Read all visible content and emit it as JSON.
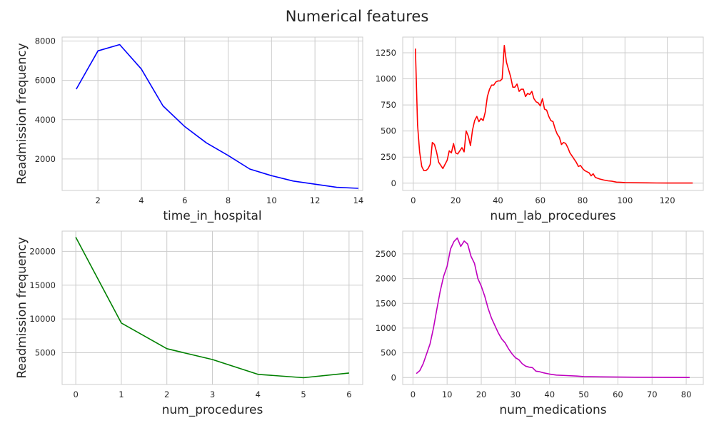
{
  "title": "Numerical features",
  "chart_data": [
    {
      "type": "line",
      "xlabel": "time_in_hospital",
      "ylabel": "Readmission frequency",
      "xlim": [
        0.35,
        14.2
      ],
      "ylim": [
        400,
        8200
      ],
      "xticks": [
        2,
        4,
        6,
        8,
        10,
        12,
        14
      ],
      "yticks": [
        2000,
        4000,
        6000,
        8000
      ],
      "color": "#0000ff",
      "grid": true,
      "x": [
        1,
        2,
        3,
        4,
        5,
        6,
        7,
        8,
        9,
        10,
        11,
        12,
        13,
        14
      ],
      "y": [
        5550,
        7500,
        7820,
        6580,
        4700,
        3650,
        2820,
        2180,
        1490,
        1150,
        880,
        720,
        560,
        510
      ]
    },
    {
      "type": "line",
      "xlabel": "num_lab_procedures",
      "ylabel": "",
      "xlim": [
        -5,
        137
      ],
      "ylim": [
        -70,
        1400
      ],
      "xticks": [
        0,
        20,
        40,
        60,
        80,
        100,
        120
      ],
      "yticks": [
        0,
        250,
        500,
        750,
        1000,
        1250
      ],
      "color": "#ff0000",
      "grid": true,
      "x": [
        1,
        2,
        3,
        4,
        5,
        6,
        7,
        8,
        9,
        10,
        11,
        12,
        13,
        14,
        15,
        16,
        17,
        18,
        19,
        20,
        21,
        22,
        23,
        24,
        25,
        26,
        27,
        28,
        29,
        30,
        31,
        32,
        33,
        34,
        35,
        36,
        37,
        38,
        39,
        40,
        41,
        42,
        43,
        44,
        45,
        46,
        47,
        48,
        49,
        50,
        51,
        52,
        53,
        54,
        55,
        56,
        57,
        58,
        59,
        60,
        61,
        62,
        63,
        64,
        65,
        66,
        67,
        68,
        69,
        70,
        71,
        72,
        73,
        74,
        75,
        76,
        77,
        78,
        79,
        80,
        81,
        82,
        83,
        84,
        85,
        86,
        88,
        90,
        92,
        94,
        96,
        98,
        100,
        102,
        105,
        110,
        115,
        120,
        125,
        132
      ],
      "y": [
        1290,
        560,
        300,
        160,
        120,
        120,
        140,
        180,
        390,
        370,
        300,
        200,
        170,
        140,
        180,
        220,
        310,
        290,
        380,
        290,
        280,
        310,
        340,
        300,
        500,
        450,
        360,
        510,
        600,
        640,
        590,
        620,
        600,
        680,
        830,
        900,
        940,
        940,
        970,
        980,
        980,
        1000,
        1320,
        1160,
        1090,
        1020,
        920,
        920,
        950,
        880,
        900,
        900,
        830,
        860,
        850,
        880,
        810,
        780,
        770,
        740,
        810,
        710,
        700,
        640,
        600,
        590,
        520,
        470,
        440,
        370,
        390,
        380,
        340,
        290,
        260,
        230,
        200,
        160,
        170,
        140,
        120,
        110,
        100,
        70,
        90,
        55,
        40,
        30,
        22,
        18,
        10,
        8,
        6,
        5,
        4,
        3,
        2,
        1,
        1,
        1
      ]
    },
    {
      "type": "line",
      "xlabel": "num_procedures",
      "ylabel": "Readmission frequency",
      "xlim": [
        -0.3,
        6.3
      ],
      "ylim": [
        300,
        23000
      ],
      "xticks": [
        0,
        1,
        2,
        3,
        4,
        5,
        6
      ],
      "yticks": [
        5000,
        10000,
        15000,
        20000
      ],
      "color": "#008000",
      "grid": true,
      "x": [
        0,
        1,
        2,
        3,
        4,
        5,
        6
      ],
      "y": [
        22100,
        9400,
        5600,
        4000,
        1800,
        1300,
        2000
      ]
    },
    {
      "type": "line",
      "xlabel": "num_medications",
      "ylabel": "",
      "xlim": [
        -3,
        85
      ],
      "ylim": [
        -140,
        2960
      ],
      "xticks": [
        0,
        10,
        20,
        30,
        40,
        50,
        60,
        70,
        80
      ],
      "yticks": [
        0,
        500,
        1000,
        1500,
        2000,
        2500
      ],
      "color": "#bf00bf",
      "grid": true,
      "x": [
        1,
        2,
        3,
        4,
        5,
        6,
        7,
        8,
        9,
        10,
        11,
        12,
        13,
        14,
        15,
        16,
        17,
        18,
        19,
        20,
        21,
        22,
        23,
        24,
        25,
        26,
        27,
        28,
        29,
        30,
        31,
        32,
        33,
        34,
        35,
        36,
        37,
        38,
        40,
        42,
        45,
        48,
        50,
        55,
        60,
        65,
        70,
        75,
        81
      ],
      "y": [
        80,
        140,
        280,
        480,
        680,
        1000,
        1380,
        1750,
        2050,
        2250,
        2600,
        2750,
        2820,
        2650,
        2760,
        2700,
        2450,
        2310,
        2000,
        1850,
        1650,
        1400,
        1200,
        1050,
        900,
        780,
        700,
        580,
        480,
        400,
        360,
        280,
        230,
        210,
        200,
        130,
        120,
        100,
        70,
        50,
        40,
        30,
        20,
        15,
        10,
        7,
        5,
        3,
        2
      ]
    }
  ]
}
